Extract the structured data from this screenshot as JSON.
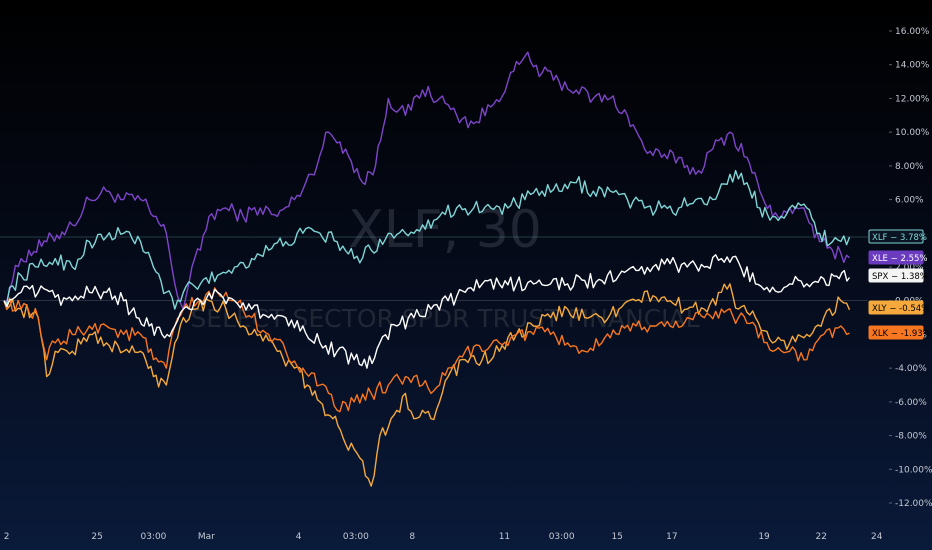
{
  "watermark": {
    "symbol": "XLF, 30",
    "description": "SELECT SECTOR SPDR TRUST FINANCIAL"
  },
  "chart_data": {
    "type": "line",
    "ylim": [
      -13,
      17
    ],
    "y_ticks": [
      16,
      14,
      12,
      10,
      8,
      6,
      4,
      2,
      0,
      -2,
      -4,
      -6,
      -8,
      -10,
      -12
    ],
    "y_tick_labels": [
      "16.00%",
      "14.00%",
      "12.00%",
      "10.00%",
      "8.00%",
      "6.00%",
      "4.00%",
      "2.00%",
      "0.00%",
      "-2.00%",
      "-4.00%",
      "-6.00%",
      "-8.00%",
      "-10.00%",
      "-12.00%"
    ],
    "xlim": [
      0,
      100
    ],
    "x_ticks": [
      {
        "x": 0.3,
        "label": "2"
      },
      {
        "x": 10.9,
        "label": "25"
      },
      {
        "x": 17.5,
        "label": "03:00"
      },
      {
        "x": 23.7,
        "label": "Mar"
      },
      {
        "x": 34.5,
        "label": "4"
      },
      {
        "x": 41.2,
        "label": "03:00"
      },
      {
        "x": 47.8,
        "label": "8"
      },
      {
        "x": 58.6,
        "label": "11"
      },
      {
        "x": 65.3,
        "label": "03:00"
      },
      {
        "x": 71.8,
        "label": "15"
      },
      {
        "x": 78.2,
        "label": "17"
      },
      {
        "x": 89.0,
        "label": "19"
      },
      {
        "x": 95.7,
        "label": "22"
      },
      {
        "x": 102.2,
        "label": "24"
      }
    ],
    "series": [
      {
        "name": "XLE",
        "color": "#7e45c9",
        "last": 2.55,
        "badge": "XLE − 2.55%",
        "anchors": [
          [
            0,
            0
          ],
          [
            2,
            2.5
          ],
          [
            5,
            3.5
          ],
          [
            8,
            4.5
          ],
          [
            10,
            6
          ],
          [
            12,
            6.5
          ],
          [
            14,
            6
          ],
          [
            16,
            6
          ],
          [
            17.5,
            5
          ],
          [
            19,
            4
          ],
          [
            20,
            1
          ],
          [
            21,
            -0.5
          ],
          [
            22,
            2
          ],
          [
            23,
            3
          ],
          [
            24,
            5
          ],
          [
            26,
            5.5
          ],
          [
            28,
            5
          ],
          [
            30,
            5.5
          ],
          [
            32,
            5
          ],
          [
            34,
            6
          ],
          [
            36,
            7.5
          ],
          [
            38,
            10
          ],
          [
            40,
            9
          ],
          [
            42,
            7
          ],
          [
            43.5,
            8
          ],
          [
            45,
            12
          ],
          [
            47,
            11
          ],
          [
            49,
            12.5
          ],
          [
            51,
            12
          ],
          [
            53,
            11
          ],
          [
            55,
            10.5
          ],
          [
            57,
            11.5
          ],
          [
            59,
            13
          ],
          [
            61,
            14.5
          ],
          [
            63,
            13.5
          ],
          [
            65,
            13
          ],
          [
            67,
            12.5
          ],
          [
            69,
            12
          ],
          [
            71,
            12
          ],
          [
            73,
            11
          ],
          [
            75,
            9
          ],
          [
            77,
            8.5
          ],
          [
            79,
            8.5
          ],
          [
            81,
            7.5
          ],
          [
            83,
            9
          ],
          [
            85,
            10
          ],
          [
            87,
            8.5
          ],
          [
            88.5,
            6.5
          ],
          [
            90,
            5
          ],
          [
            92,
            5.5
          ],
          [
            94,
            5
          ],
          [
            95.5,
            3.5
          ],
          [
            97,
            3
          ],
          [
            99,
            2.55
          ]
        ]
      },
      {
        "name": "XLF",
        "color": "#7fd6d6",
        "last": 3.78,
        "badge": "XLF − 3.78%",
        "anchors": [
          [
            0,
            0
          ],
          [
            2,
            1.5
          ],
          [
            4,
            2
          ],
          [
            6,
            2.5
          ],
          [
            8,
            2
          ],
          [
            10,
            3.5
          ],
          [
            12,
            3.8
          ],
          [
            14,
            4
          ],
          [
            16,
            3.5
          ],
          [
            17.5,
            2
          ],
          [
            19,
            0.5
          ],
          [
            20,
            -0.5
          ],
          [
            21,
            0.5
          ],
          [
            22,
            1
          ],
          [
            23,
            1
          ],
          [
            25,
            1.5
          ],
          [
            27,
            2
          ],
          [
            29,
            2.5
          ],
          [
            31,
            3
          ],
          [
            33,
            3.5
          ],
          [
            35,
            4
          ],
          [
            37,
            4
          ],
          [
            39,
            3.5
          ],
          [
            41,
            2.5
          ],
          [
            43,
            3
          ],
          [
            45,
            4
          ],
          [
            47,
            4
          ],
          [
            49,
            4.5
          ],
          [
            51,
            5
          ],
          [
            53,
            5.5
          ],
          [
            55,
            5.5
          ],
          [
            57,
            5.5
          ],
          [
            59,
            5.5
          ],
          [
            61,
            6
          ],
          [
            63,
            6.5
          ],
          [
            65,
            6.5
          ],
          [
            67,
            7
          ],
          [
            69,
            6.5
          ],
          [
            71,
            6.5
          ],
          [
            73,
            6
          ],
          [
            75,
            5.5
          ],
          [
            77,
            5.5
          ],
          [
            79,
            5.5
          ],
          [
            81,
            6
          ],
          [
            83,
            6
          ],
          [
            85,
            7.5
          ],
          [
            87,
            7
          ],
          [
            88.5,
            5.5
          ],
          [
            90,
            5
          ],
          [
            92,
            5.5
          ],
          [
            94,
            5.5
          ],
          [
            95.5,
            4
          ],
          [
            97,
            3.5
          ],
          [
            99,
            3.78
          ]
        ]
      },
      {
        "name": "SPX",
        "color": "#ffffff",
        "last": 1.38,
        "badge": "SPX − 1.38%",
        "anchors": [
          [
            0,
            0
          ],
          [
            2,
            0.5
          ],
          [
            4,
            0.5
          ],
          [
            6,
            0.2
          ],
          [
            8,
            0
          ],
          [
            10,
            0.5
          ],
          [
            12,
            0.5
          ],
          [
            14,
            0
          ],
          [
            15.5,
            -1
          ],
          [
            17,
            -1.5
          ],
          [
            18.5,
            -2
          ],
          [
            20,
            -1.5
          ],
          [
            21,
            -0.5
          ],
          [
            23,
            0
          ],
          [
            25,
            0.5
          ],
          [
            27,
            0
          ],
          [
            29,
            -0.5
          ],
          [
            31,
            -1
          ],
          [
            33,
            -1
          ],
          [
            35,
            -1.5
          ],
          [
            37,
            -2.5
          ],
          [
            39,
            -3
          ],
          [
            41,
            -3.5
          ],
          [
            42.5,
            -4
          ],
          [
            44,
            -2.5
          ],
          [
            46,
            -1.5
          ],
          [
            48,
            -1
          ],
          [
            50,
            -0.5
          ],
          [
            52,
            0
          ],
          [
            54,
            0.5
          ],
          [
            56,
            1
          ],
          [
            58,
            1
          ],
          [
            60,
            1
          ],
          [
            62,
            1
          ],
          [
            64,
            1
          ],
          [
            66,
            1
          ],
          [
            68,
            1.2
          ],
          [
            70,
            1.2
          ],
          [
            72,
            1.5
          ],
          [
            74,
            1.8
          ],
          [
            76,
            2
          ],
          [
            78,
            2.2
          ],
          [
            80,
            2
          ],
          [
            82,
            2
          ],
          [
            84,
            2.5
          ],
          [
            86,
            2.3
          ],
          [
            88,
            1
          ],
          [
            90,
            0.8
          ],
          [
            92,
            1
          ],
          [
            94,
            1
          ],
          [
            96,
            1.3
          ],
          [
            99,
            1.38
          ]
        ]
      },
      {
        "name": "XLY",
        "color": "#f5a93c",
        "last": -0.54,
        "badge": "XLY − -0.54%",
        "anchors": [
          [
            0,
            0
          ],
          [
            2,
            -0.5
          ],
          [
            4,
            -1
          ],
          [
            5,
            -4.5
          ],
          [
            6,
            -3
          ],
          [
            8,
            -3
          ],
          [
            10,
            -2
          ],
          [
            12,
            -2.5
          ],
          [
            14,
            -3
          ],
          [
            16,
            -3
          ],
          [
            17.5,
            -4.5
          ],
          [
            19,
            -5
          ],
          [
            20,
            -2.5
          ],
          [
            21,
            -1
          ],
          [
            22,
            -0.5
          ],
          [
            24,
            0
          ],
          [
            26,
            -0.5
          ],
          [
            28,
            -1.5
          ],
          [
            30,
            -2
          ],
          [
            32,
            -3
          ],
          [
            34,
            -4
          ],
          [
            35.5,
            -5
          ],
          [
            37,
            -6
          ],
          [
            38.5,
            -7
          ],
          [
            40,
            -8.5
          ],
          [
            42,
            -9.5
          ],
          [
            43,
            -11
          ],
          [
            44,
            -8
          ],
          [
            45,
            -7.5
          ],
          [
            46,
            -6.5
          ],
          [
            47,
            -5.5
          ],
          [
            48,
            -7
          ],
          [
            49,
            -6.5
          ],
          [
            50,
            -7
          ],
          [
            51,
            -6
          ],
          [
            52,
            -4.5
          ],
          [
            54,
            -3.5
          ],
          [
            56,
            -3.5
          ],
          [
            58,
            -3
          ],
          [
            60,
            -2
          ],
          [
            62,
            -1.5
          ],
          [
            64,
            -1
          ],
          [
            66,
            -0.5
          ],
          [
            68,
            -1
          ],
          [
            70,
            -1
          ],
          [
            72,
            -0.5
          ],
          [
            74,
            0
          ],
          [
            76,
            0.3
          ],
          [
            78,
            0
          ],
          [
            80,
            -0.5
          ],
          [
            82,
            -0.5
          ],
          [
            84,
            0.5
          ],
          [
            85,
            1
          ],
          [
            86,
            -0.5
          ],
          [
            88,
            -1
          ],
          [
            90,
            -2.5
          ],
          [
            92,
            -2.5
          ],
          [
            94,
            -2
          ],
          [
            96,
            -1
          ],
          [
            98,
            0
          ],
          [
            99,
            -0.54
          ]
        ]
      },
      {
        "name": "XLK",
        "color": "#f7761f",
        "last": -1.93,
        "badge": "XLK − -1.93%",
        "anchors": [
          [
            0,
            0
          ],
          [
            2,
            -0.5
          ],
          [
            4,
            -1
          ],
          [
            5,
            -3.5
          ],
          [
            6,
            -2.5
          ],
          [
            8,
            -2
          ],
          [
            10,
            -1.5
          ],
          [
            12,
            -1.5
          ],
          [
            14,
            -2
          ],
          [
            16,
            -2
          ],
          [
            17.5,
            -3.5
          ],
          [
            19,
            -4
          ],
          [
            20,
            -1.5
          ],
          [
            21,
            -0.5
          ],
          [
            23,
            0
          ],
          [
            25,
            0.5
          ],
          [
            27,
            0
          ],
          [
            29,
            -1
          ],
          [
            31,
            -2
          ],
          [
            33,
            -3
          ],
          [
            35,
            -4
          ],
          [
            37,
            -5
          ],
          [
            39,
            -6.5
          ],
          [
            41,
            -6
          ],
          [
            43,
            -5.5
          ],
          [
            45,
            -5
          ],
          [
            47,
            -4.5
          ],
          [
            48,
            -4.5
          ],
          [
            49,
            -5
          ],
          [
            50,
            -5.5
          ],
          [
            51,
            -5
          ],
          [
            52,
            -4
          ],
          [
            54,
            -3
          ],
          [
            56,
            -3
          ],
          [
            58,
            -2.5
          ],
          [
            60,
            -2
          ],
          [
            62,
            -2
          ],
          [
            64,
            -2
          ],
          [
            66,
            -2.5
          ],
          [
            68,
            -3
          ],
          [
            70,
            -2.5
          ],
          [
            72,
            -2
          ],
          [
            74,
            -1.5
          ],
          [
            76,
            -1.5
          ],
          [
            78,
            -1.5
          ],
          [
            80,
            -1
          ],
          [
            82,
            -1
          ],
          [
            84,
            -0.5
          ],
          [
            86,
            -1
          ],
          [
            88,
            -1.5
          ],
          [
            90,
            -3
          ],
          [
            92,
            -3
          ],
          [
            94,
            -3.5
          ],
          [
            96,
            -2
          ],
          [
            98,
            -1.5
          ],
          [
            99,
            -1.93
          ]
        ]
      }
    ],
    "badges": [
      {
        "series": "XLF",
        "y": 3.78,
        "bg": "#0b1422",
        "border": "#7fd6d6",
        "text": "#7fd6d6"
      },
      {
        "series": "XLE",
        "y": 2.55,
        "bg": "#6a3bbf",
        "border": "#6a3bbf",
        "text": "#ffffff"
      },
      {
        "series": "SPX",
        "y": 1.38,
        "bg": "#f4f4f4",
        "border": "#f4f4f4",
        "text": "#000000"
      },
      {
        "series": "XLY",
        "y": -0.54,
        "bg": "#f5a93c",
        "border": "#f5a93c",
        "text": "#000000"
      },
      {
        "series": "XLK",
        "y": -1.93,
        "bg": "#f7761f",
        "border": "#f7761f",
        "text": "#000000"
      }
    ],
    "reference_lines": [
      {
        "y": 3.78,
        "color": "#7fd6d6"
      },
      {
        "y": 0,
        "color": "#7a808c"
      }
    ]
  }
}
